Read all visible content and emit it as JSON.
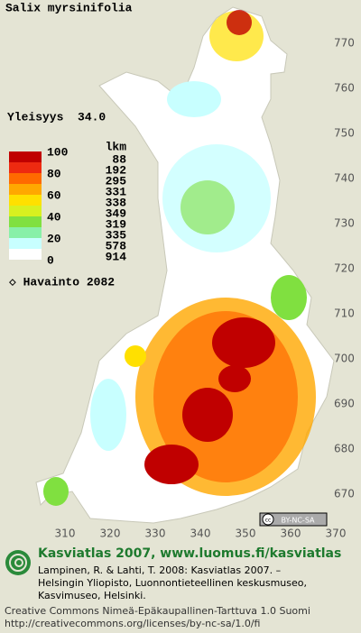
{
  "map": {
    "title": "Salix myrsinifolia",
    "frequency": "Yleisyys  34.0",
    "legend": {
      "scale": [
        "100",
        "80",
        "60",
        "40",
        "20",
        "0"
      ],
      "count_header": "lkm",
      "items": [
        {
          "color": "#c00000",
          "count": "88"
        },
        {
          "color": "#ee2a10",
          "count": "192"
        },
        {
          "color": "#ff6a00",
          "count": "295"
        },
        {
          "color": "#ffa800",
          "count": "331"
        },
        {
          "color": "#ffe000",
          "count": "338"
        },
        {
          "color": "#d8f020",
          "count": "349"
        },
        {
          "color": "#80e040",
          "count": "319"
        },
        {
          "color": "#88f0a8",
          "count": "335"
        },
        {
          "color": "#c8ffff",
          "count": "578"
        },
        {
          "color": "#ffffff",
          "count": "914"
        }
      ],
      "observations": "◇ Havainto 2082"
    },
    "y_labels": [
      "770",
      "760",
      "750",
      "740",
      "730",
      "720",
      "710",
      "700",
      "690",
      "680",
      "670"
    ],
    "x_labels": [
      "310",
      "320",
      "330",
      "340",
      "350",
      "360",
      "370"
    ],
    "license_badge": "BY-NC-SA"
  },
  "footer": {
    "heading": "Kasviatlas 2007, www.luomus.fi/kasviatlas",
    "lines": [
      "Lampinen, R. & Lahti, T. 2008: Kasviatlas 2007. –",
      "Helsingin Yliopisto, Luonnontieteellinen keskusmuseo,",
      "Kasvimuseo, Helsinki."
    ],
    "license": "Creative Commons Nimeä-Epäkaupallinen-Tarttuva 1.0 Suomi",
    "url": "http://creativecommons.org/licenses/by-nc-sa/1.0/fi"
  }
}
